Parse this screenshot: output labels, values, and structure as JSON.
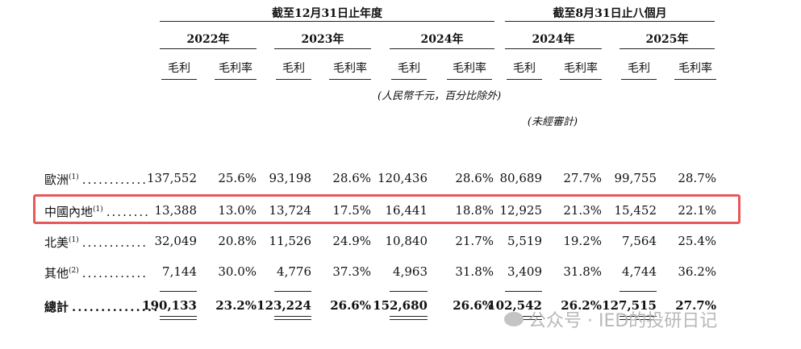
{
  "header": {
    "group_fy": "截至12月31日止年度",
    "group_8m": "截至8月31日止八個月",
    "years": [
      "2022年",
      "2023年",
      "2024年",
      "2024年",
      "2025年"
    ],
    "col_gp": "毛利",
    "col_gpm": "毛利率",
    "unit_note": "(人民幣千元，百分比除外)",
    "unaudited_note": "(未經審計)"
  },
  "rows": [
    {
      "label": "歐洲",
      "sup": "(1)",
      "dots": "............",
      "values": [
        "137,552",
        "25.6%",
        "93,198",
        "28.6%",
        "120,436",
        "28.6%",
        "80,689",
        "27.7%",
        "99,755",
        "28.7%"
      ]
    },
    {
      "label": "中國內地",
      "sup": "(1)",
      "dots": "........",
      "values": [
        "13,388",
        "13.0%",
        "13,724",
        "17.5%",
        "16,441",
        "18.8%",
        "12,925",
        "21.3%",
        "15,452",
        "22.1%"
      ]
    },
    {
      "label": "北美",
      "sup": "(1)",
      "dots": "............",
      "values": [
        "32,049",
        "20.8%",
        "11,526",
        "24.9%",
        "10,840",
        "21.7%",
        "5,519",
        "19.2%",
        "7,564",
        "25.4%"
      ]
    },
    {
      "label": "其他",
      "sup": "(2)",
      "dots": "............",
      "values": [
        "7,144",
        "30.0%",
        "4,776",
        "37.3%",
        "4,963",
        "31.8%",
        "3,409",
        "31.8%",
        "4,744",
        "36.2%"
      ]
    },
    {
      "label": "總計",
      "sup": "",
      "dots": "...............",
      "values": [
        "190,133",
        "23.2%",
        "123,224",
        "26.6%",
        "152,680",
        "26.6%",
        "102,542",
        "26.2%",
        "127,515",
        "27.7%"
      ]
    }
  ],
  "watermark": {
    "text": "公众号 · IED的投研日记"
  },
  "colors": {
    "highlight_border": "#e8575a",
    "watermark": "#b8b8b8"
  }
}
